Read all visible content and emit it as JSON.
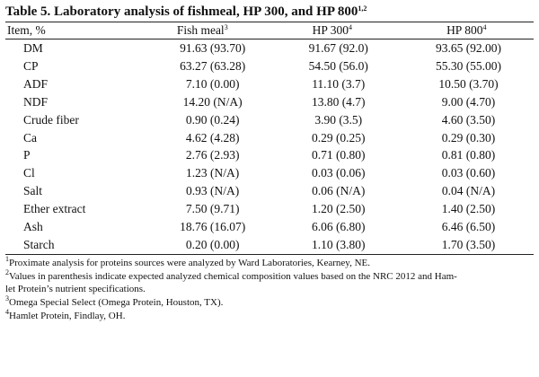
{
  "table": {
    "title": "Table 5. Laboratory analysis of fishmeal, HP 300, and HP 800",
    "title_sup": "1,2",
    "headers": [
      {
        "label": "Item, %",
        "sup": ""
      },
      {
        "label": "Fish meal",
        "sup": "3"
      },
      {
        "label": "HP 300",
        "sup": "4"
      },
      {
        "label": "HP 800",
        "sup": "4"
      }
    ],
    "rows": [
      {
        "item": "DM",
        "fishmeal": "91.63 (93.70)",
        "hp300": "91.67 (92.0)",
        "hp800": "93.65 (92.00)"
      },
      {
        "item": "CP",
        "fishmeal": "63.27 (63.28)",
        "hp300": "54.50 (56.0)",
        "hp800": "55.30 (55.00)"
      },
      {
        "item": "ADF",
        "fishmeal": "7.10 (0.00)",
        "hp300": "11.10 (3.7)",
        "hp800": "10.50 (3.70)"
      },
      {
        "item": "NDF",
        "fishmeal": "14.20 (N/A)",
        "hp300": "13.80 (4.7)",
        "hp800": "9.00 (4.70)"
      },
      {
        "item": "Crude fiber",
        "fishmeal": "0.90 (0.24)",
        "hp300": "3.90 (3.5)",
        "hp800": "4.60 (3.50)"
      },
      {
        "item": "Ca",
        "fishmeal": "4.62 (4.28)",
        "hp300": "0.29 (0.25)",
        "hp800": "0.29 (0.30)"
      },
      {
        "item": "P",
        "fishmeal": "2.76 (2.93)",
        "hp300": "0.71 (0.80)",
        "hp800": "0.81 (0.80)"
      },
      {
        "item": "Cl",
        "fishmeal": "1.23 (N/A)",
        "hp300": "0.03 (0.06)",
        "hp800": "0.03 (0.60)"
      },
      {
        "item": "Salt",
        "fishmeal": "0.93 (N/A)",
        "hp300": "0.06 (N/A)",
        "hp800": "0.04 (N/A)"
      },
      {
        "item": "Ether extract",
        "fishmeal": "7.50 (9.71)",
        "hp300": "1.20 (2.50)",
        "hp800": "1.40 (2.50)"
      },
      {
        "item": "Ash",
        "fishmeal": "18.76 (16.07)",
        "hp300": "6.06 (6.80)",
        "hp800": "6.46 (6.50)"
      },
      {
        "item": "Starch",
        "fishmeal": "0.20 (0.00)",
        "hp300": "1.10 (3.80)",
        "hp800": "1.70 (3.50)"
      }
    ],
    "footnotes": [
      {
        "sup": "1",
        "text": "Proximate analysis for proteins sources were analyzed by Ward Laboratories, Kearney, NE."
      },
      {
        "sup": "2",
        "text": "Values in parenthesis indicate expected analyzed chemical composition values based on the NRC 2012 and Ham-"
      },
      {
        "sup": "",
        "text": "let Protein’s nutrient specifications."
      },
      {
        "sup": "3",
        "text": "Omega Special Select (Omega Protein, Houston, TX)."
      },
      {
        "sup": "4",
        "text": "Hamlet Protein, Findlay, OH."
      }
    ]
  }
}
